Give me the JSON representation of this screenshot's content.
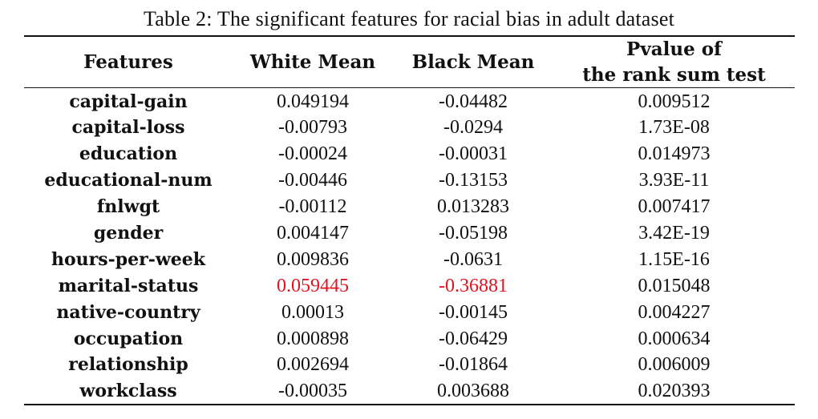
{
  "caption": "Table 2: The significant features for racial bias in adult dataset",
  "headers": {
    "features": "Features",
    "white_mean": "White Mean",
    "black_mean": "Black Mean",
    "pvalue_line1": "Pvalue of",
    "pvalue_line2": "the rank sum test"
  },
  "highlight_color": "#e0141e",
  "rows": [
    {
      "feature": "capital-gain",
      "white": "0.049194",
      "black": "-0.04482",
      "pvalue": "0.009512",
      "highlight": false
    },
    {
      "feature": "capital-loss",
      "white": "-0.00793",
      "black": "-0.0294",
      "pvalue": "1.73E-08",
      "highlight": false
    },
    {
      "feature": "education",
      "white": "-0.00024",
      "black": "-0.00031",
      "pvalue": "0.014973",
      "highlight": false
    },
    {
      "feature": "educational-num",
      "white": "-0.00446",
      "black": "-0.13153",
      "pvalue": "3.93E-11",
      "highlight": false
    },
    {
      "feature": "fnlwgt",
      "white": "-0.00112",
      "black": "0.013283",
      "pvalue": "0.007417",
      "highlight": false
    },
    {
      "feature": "gender",
      "white": "0.004147",
      "black": "-0.05198",
      "pvalue": "3.42E-19",
      "highlight": false
    },
    {
      "feature": "hours-per-week",
      "white": "0.009836",
      "black": "-0.0631",
      "pvalue": "1.15E-16",
      "highlight": false
    },
    {
      "feature": "marital-status",
      "white": "0.059445",
      "black": "-0.36881",
      "pvalue": "0.015048",
      "highlight": true
    },
    {
      "feature": "native-country",
      "white": "0.00013",
      "black": "-0.00145",
      "pvalue": "0.004227",
      "highlight": false
    },
    {
      "feature": "occupation",
      "white": "0.000898",
      "black": "-0.06429",
      "pvalue": "0.000634",
      "highlight": false
    },
    {
      "feature": "relationship",
      "white": "0.002694",
      "black": "-0.01864",
      "pvalue": "0.006009",
      "highlight": false
    },
    {
      "feature": "workclass",
      "white": "-0.00035",
      "black": "0.003688",
      "pvalue": "0.020393",
      "highlight": false
    }
  ]
}
